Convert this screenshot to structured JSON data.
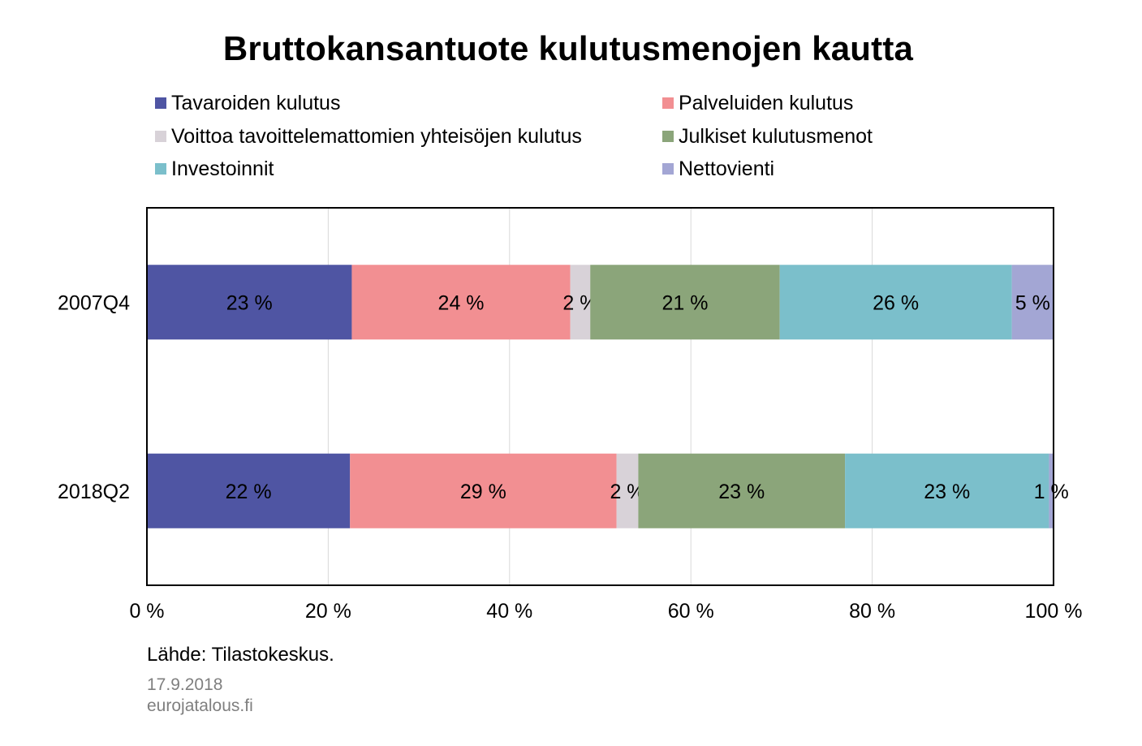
{
  "title": "Bruttokansantuote kulutusmenojen kautta",
  "legend": [
    {
      "label": "Tavaroiden kulutus",
      "color": "#4f55a3"
    },
    {
      "label": "Palveluiden kulutus",
      "color": "#f28f92"
    },
    {
      "label": "Voittoa tavoittelemattomien yhteisöjen kulutus",
      "color": "#d8d2d8"
    },
    {
      "label": "Julkiset kulutusmenot",
      "color": "#8ba57a"
    },
    {
      "label": "Investoinnit",
      "color": "#7bbfcb"
    },
    {
      "label": "Nettovienti",
      "color": "#a3a6d4"
    }
  ],
  "chart_data": {
    "type": "bar",
    "orientation": "horizontal",
    "stacked": "percent",
    "categories": [
      "2007Q4",
      "2018Q2"
    ],
    "series": [
      {
        "name": "Tavaroiden kulutus",
        "values": [
          22.6,
          22.4
        ],
        "labels": [
          "23 %",
          "22 %"
        ]
      },
      {
        "name": "Palveluiden kulutus",
        "values": [
          24.1,
          29.4
        ],
        "labels": [
          "24 %",
          "29 %"
        ]
      },
      {
        "name": "Voittoa tavoittelemattomien yhteisöjen kulutus",
        "values": [
          2.2,
          2.4
        ],
        "labels": [
          "2 %",
          "2 %"
        ]
      },
      {
        "name": "Julkiset kulutusmenot",
        "values": [
          20.9,
          22.8
        ],
        "labels": [
          "21 %",
          "23 %"
        ]
      },
      {
        "name": "Investoinnit",
        "values": [
          25.6,
          22.5
        ],
        "labels": [
          "26 %",
          "23 %"
        ]
      },
      {
        "name": "Nettovienti",
        "values": [
          4.6,
          0.5
        ],
        "labels": [
          "5 %",
          "1 %"
        ]
      }
    ],
    "xlim": [
      0,
      100
    ],
    "xticks": [
      "0 %",
      "20 %",
      "40 %",
      "60 %",
      "80 %",
      "100 %"
    ],
    "grid": true,
    "legend_position": "top"
  },
  "footer": {
    "source": "Lähde: Tilastokeskus.",
    "date": "17.9.2018",
    "site": "eurojatalous.fi"
  }
}
